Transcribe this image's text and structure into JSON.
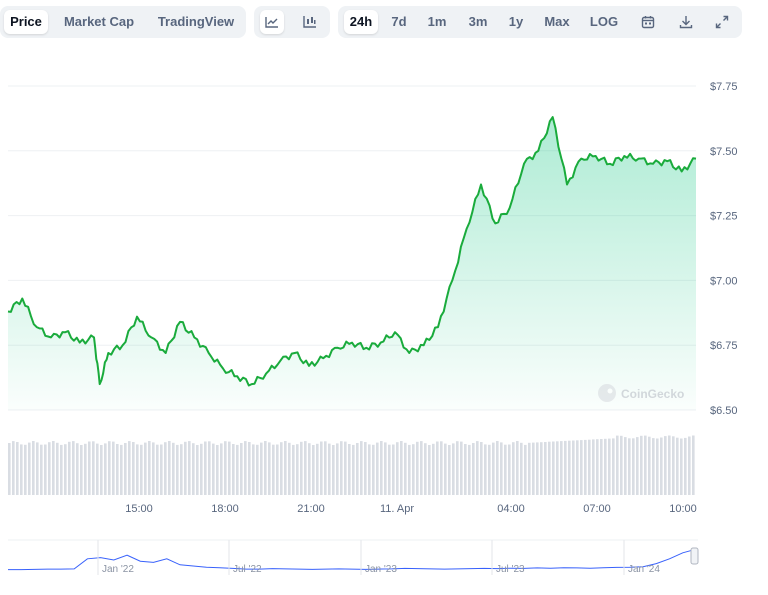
{
  "toolbar": {
    "tabs": [
      "Price",
      "Market Cap",
      "TradingView"
    ],
    "active_tab": "Price",
    "chart_type_icons": [
      "line-chart-icon",
      "candlestick-chart-icon"
    ],
    "ranges": [
      "24h",
      "7d",
      "1m",
      "3m",
      "1y",
      "Max",
      "LOG"
    ],
    "active_range": "24h",
    "tool_icons": [
      "calendar-icon",
      "download-icon",
      "expand-icon"
    ]
  },
  "watermark": "CoinGecko",
  "colors": {
    "line": "#16c784",
    "line_dark": "#1aab3c",
    "grid": "#eef0f3",
    "volume": "#d9dde3",
    "nav_line": "#3861fb"
  },
  "chart_data": {
    "type": "area",
    "x_tick_labels": [
      "15:00",
      "18:00",
      "21:00",
      "11. Apr",
      "04:00",
      "07:00",
      "10:00"
    ],
    "y_tick_labels": [
      "$7.75",
      "$7.50",
      "$7.25",
      "$7.00",
      "$6.75",
      "$6.50"
    ],
    "ylim": [
      6.5,
      7.75
    ],
    "x_hours": [
      0,
      0.5,
      1,
      1.5,
      2,
      2.5,
      3,
      3.2,
      3.5,
      4,
      4.5,
      5,
      5.5,
      6,
      6.5,
      7,
      7.5,
      8,
      8.5,
      9,
      9.5,
      10,
      10.5,
      11,
      11.5,
      12,
      12.5,
      13,
      13.5,
      14,
      14.5,
      15,
      15.5,
      16,
      16.5,
      17,
      17.5,
      18,
      18.5,
      19,
      19.5,
      20,
      20.5,
      21,
      21.5,
      22,
      22.5,
      23,
      23.5,
      24
    ],
    "price": [
      6.88,
      6.93,
      6.82,
      6.78,
      6.8,
      6.76,
      6.78,
      6.6,
      6.72,
      6.75,
      6.86,
      6.78,
      6.72,
      6.84,
      6.78,
      6.72,
      6.66,
      6.63,
      6.6,
      6.64,
      6.69,
      6.72,
      6.67,
      6.7,
      6.74,
      6.76,
      6.74,
      6.76,
      6.8,
      6.72,
      6.75,
      6.82,
      7.0,
      7.2,
      7.37,
      7.22,
      7.28,
      7.45,
      7.5,
      7.63,
      7.37,
      7.47,
      7.48,
      7.45,
      7.48,
      7.47,
      7.45,
      7.46,
      7.42,
      7.47
    ],
    "volume_series": "relative bar heights, rising toward the end",
    "navigator_x_labels": [
      "Jan '22",
      "Jul '22",
      "Jan '23",
      "Jul '23",
      "Jan '24"
    ]
  }
}
